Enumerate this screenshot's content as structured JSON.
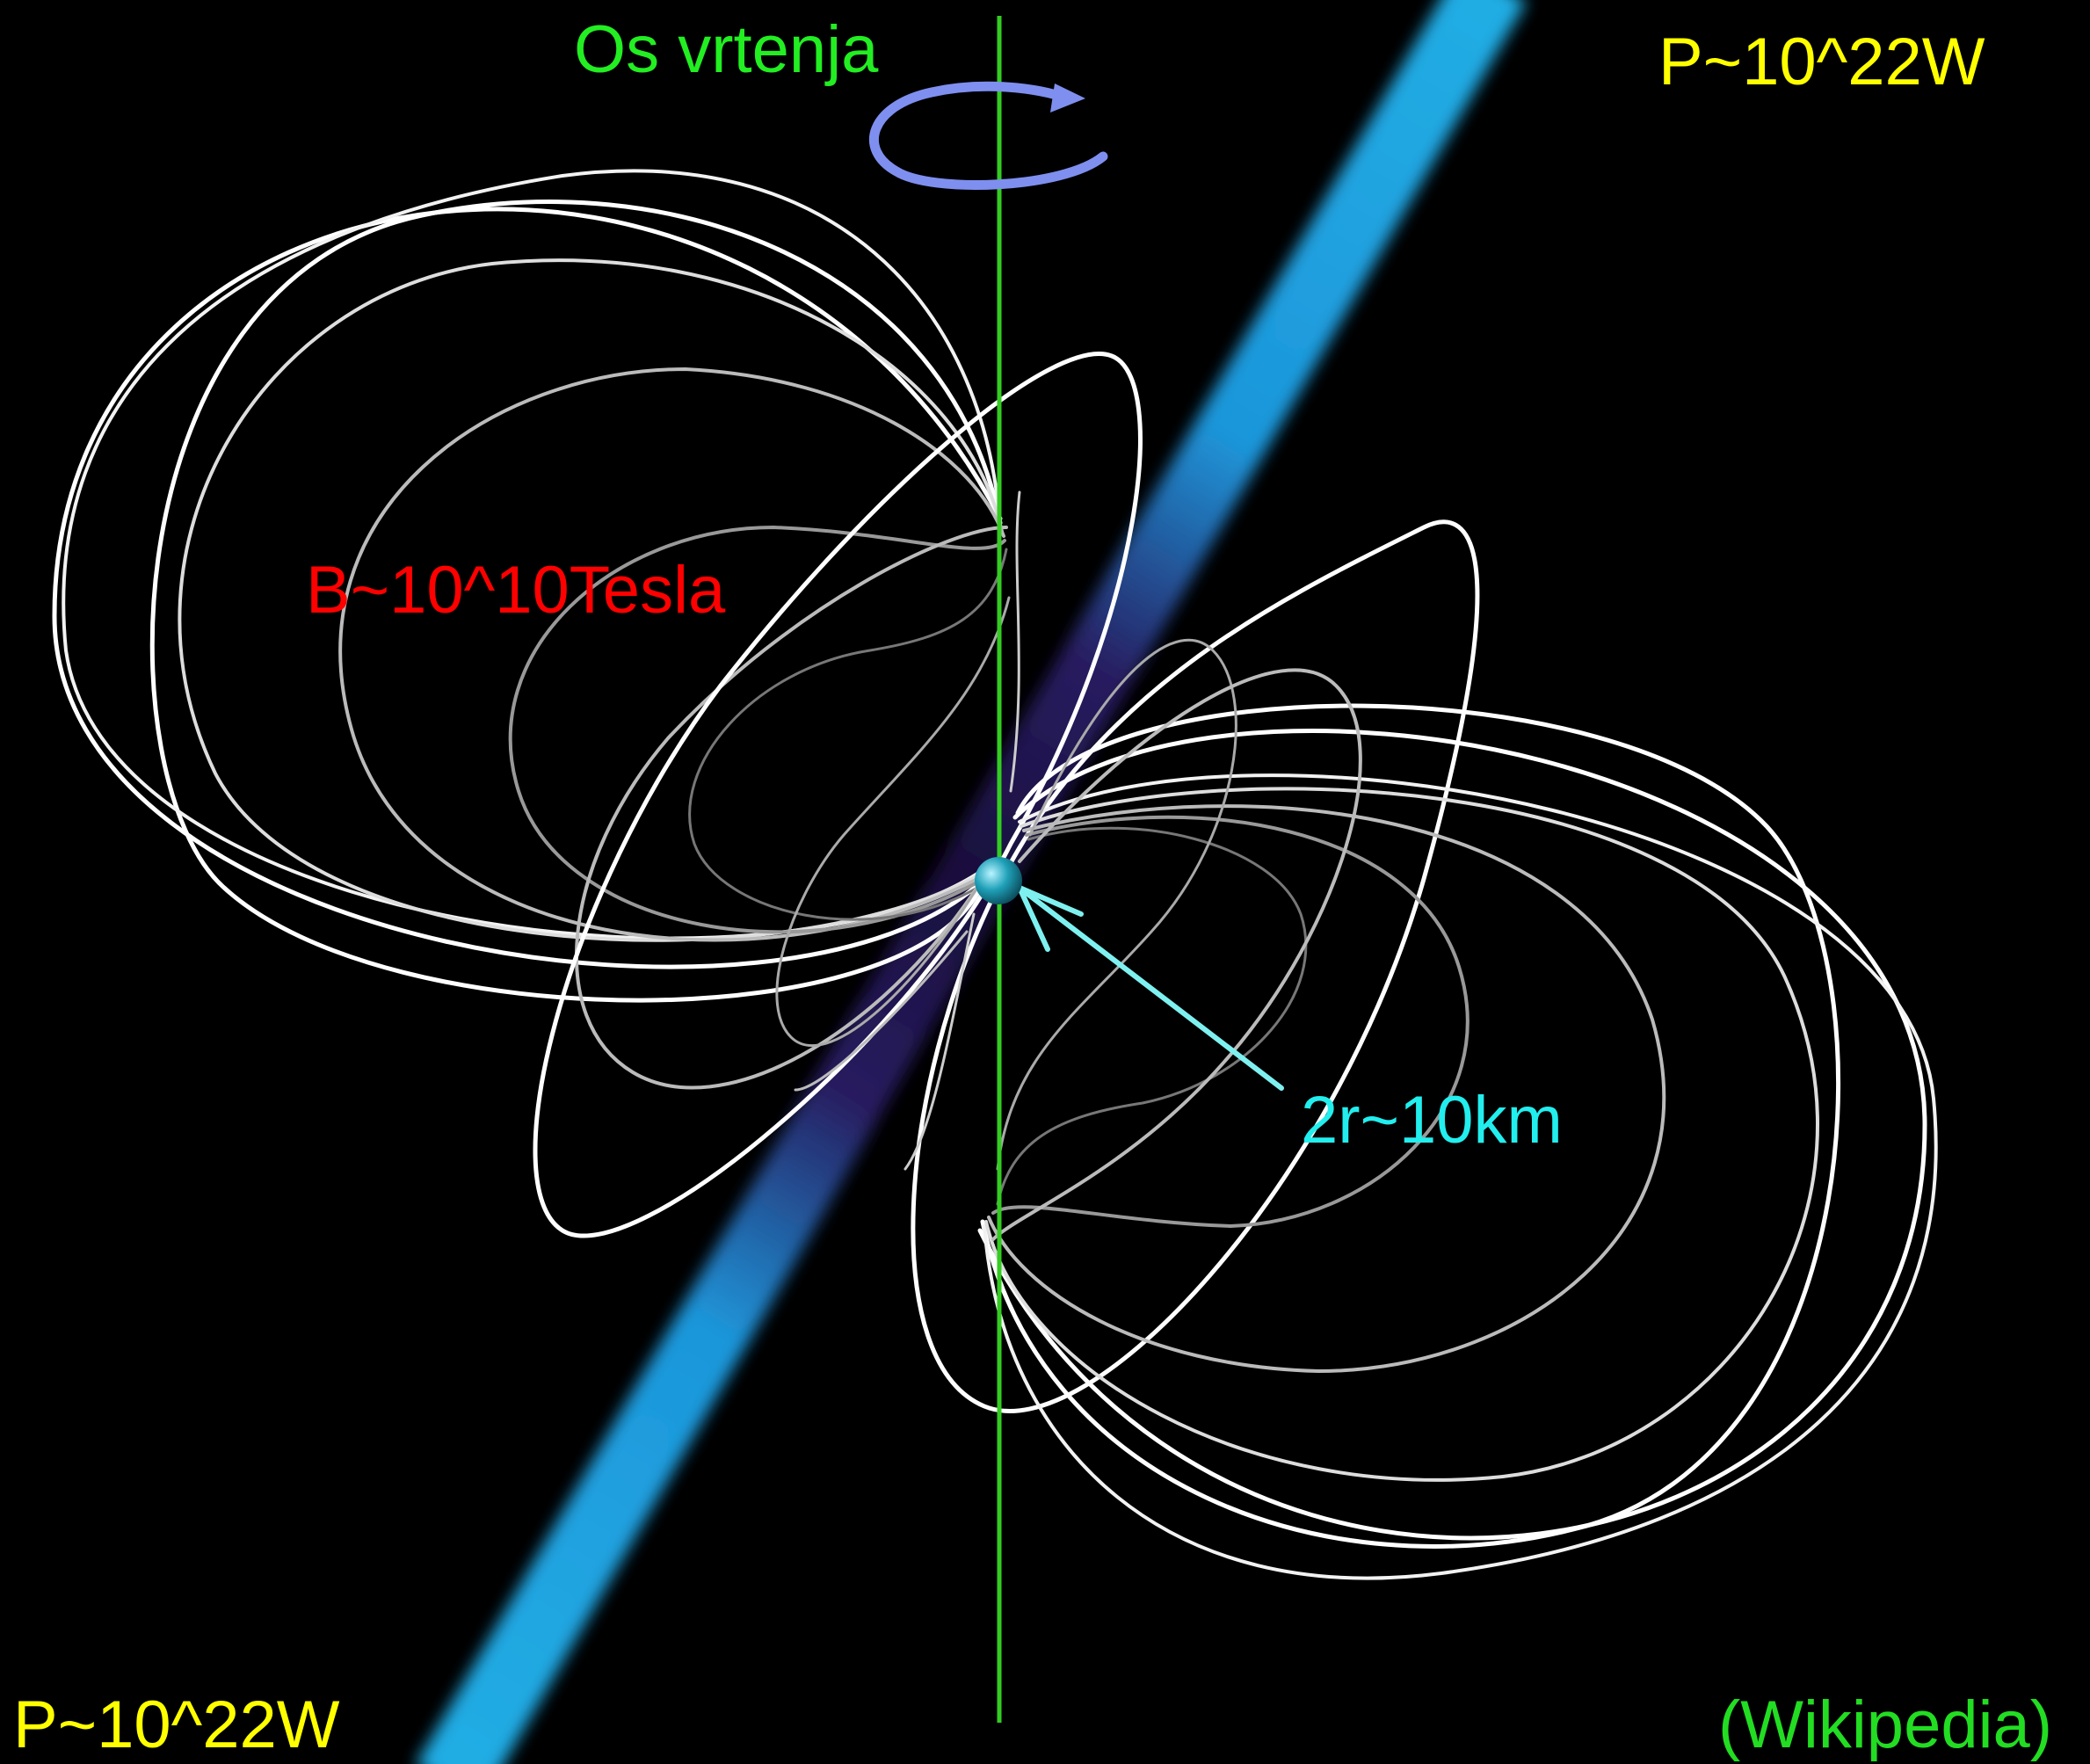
{
  "labels": {
    "spin_axis": "Os vrtenja",
    "power_top": "P~10^22W",
    "power_bottom": "P~10^22W",
    "magnetic_field": "B~10^10Tesla",
    "diameter": "2r~10km",
    "source": "(Wikipedia)"
  },
  "colors": {
    "background": "#000000",
    "spin_axis": "#33cc22",
    "spin_axis_label": "#22ee22",
    "rotation_arrow": "#7f8fef",
    "beam": "#22b8f2",
    "beam_core": "#2a1a66",
    "field_lines": "#ffffff",
    "power_label": "#ffff00",
    "field_label": "#ff0000",
    "diameter_label": "#22eeee",
    "diameter_arrow": "#7ff0f0",
    "source_label": "#22dd22",
    "star": "#1fa0b8"
  },
  "icons": {
    "rotation": "circular-arrow-icon",
    "diameter_pointer": "arrow-icon"
  }
}
